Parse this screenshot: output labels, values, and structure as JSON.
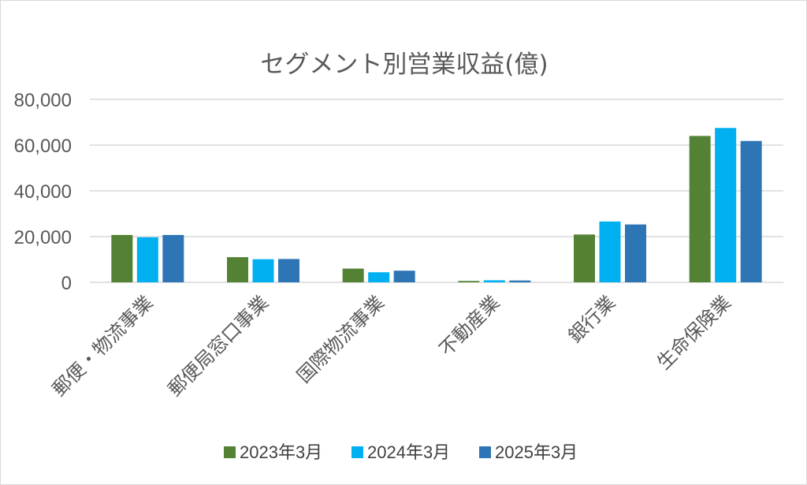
{
  "chart_data": {
    "type": "bar",
    "title": "セグメント別営業収益(億)",
    "xlabel": "",
    "ylabel": "",
    "ylim": [
      0,
      80000
    ],
    "yticks": [
      {
        "value": 0,
        "label": "0"
      },
      {
        "value": 20000,
        "label": "20,000"
      },
      {
        "value": 40000,
        "label": "40,000"
      },
      {
        "value": 60000,
        "label": "60,000"
      },
      {
        "value": 80000,
        "label": "80,000"
      }
    ],
    "categories": [
      "郵便・物流事業",
      "郵便局窓口事業",
      "国際物流事業",
      "不動産業",
      "銀行業",
      "生命保険業"
    ],
    "series": [
      {
        "name": "2023年3月",
        "color": "#548235",
        "values": [
          20700,
          11000,
          6000,
          600,
          20900,
          64000
        ]
      },
      {
        "name": "2024年3月",
        "color": "#00b0f0",
        "values": [
          19700,
          10100,
          4400,
          900,
          26600,
          67500
        ]
      },
      {
        "name": "2025年3月",
        "color": "#2e75b6",
        "values": [
          20700,
          10200,
          5100,
          800,
          25300,
          61800
        ]
      }
    ],
    "grid": true,
    "legend_position": "bottom"
  }
}
